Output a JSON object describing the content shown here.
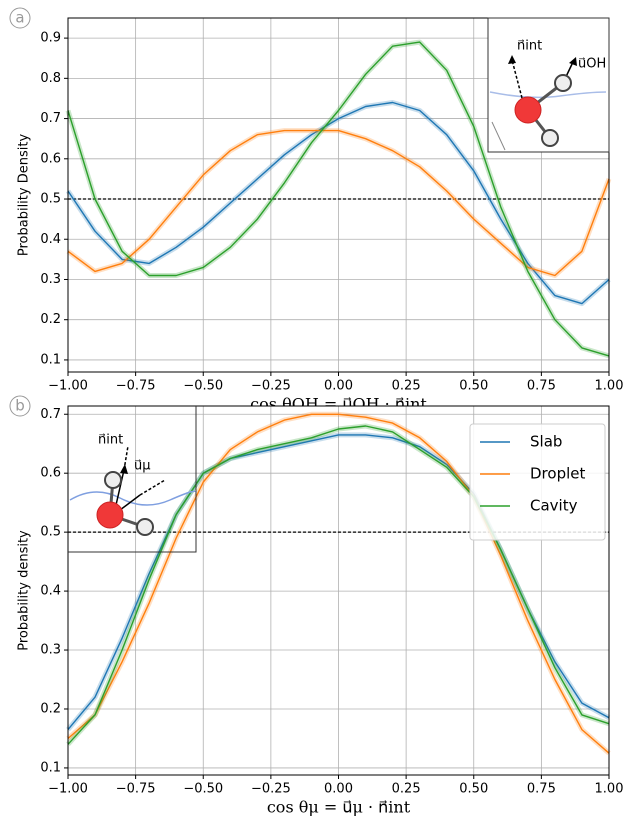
{
  "chart_data": [
    {
      "type": "line",
      "panel_label": "a",
      "x_label": "cos θOH = u⃗OH · n⃗int",
      "y_label": "Probability Density",
      "x": [
        -1.0,
        -0.9,
        -0.8,
        -0.7,
        -0.6,
        -0.5,
        -0.4,
        -0.3,
        -0.2,
        -0.1,
        0.0,
        0.1,
        0.2,
        0.3,
        0.4,
        0.5,
        0.6,
        0.7,
        0.8,
        0.9,
        1.0
      ],
      "series": [
        {
          "color": "#1f77b4",
          "values": [
            0.52,
            0.42,
            0.35,
            0.34,
            0.38,
            0.43,
            0.49,
            0.55,
            0.61,
            0.66,
            0.7,
            0.73,
            0.74,
            0.72,
            0.66,
            0.57,
            0.45,
            0.34,
            0.26,
            0.24,
            0.3
          ]
        },
        {
          "color": "#ff7f0e",
          "values": [
            0.37,
            0.32,
            0.34,
            0.4,
            0.48,
            0.56,
            0.62,
            0.66,
            0.67,
            0.67,
            0.67,
            0.65,
            0.62,
            0.58,
            0.52,
            0.45,
            0.39,
            0.33,
            0.31,
            0.37,
            0.55
          ]
        },
        {
          "color": "#2ca02c",
          "values": [
            0.72,
            0.5,
            0.37,
            0.31,
            0.31,
            0.33,
            0.38,
            0.45,
            0.54,
            0.64,
            0.72,
            0.81,
            0.88,
            0.89,
            0.82,
            0.68,
            0.48,
            0.32,
            0.2,
            0.13,
            0.11
          ]
        }
      ],
      "hline": 0.5,
      "xlim": [
        -1,
        1
      ],
      "ylim": [
        0.07,
        0.95
      ],
      "xticks": [
        {
          "value": -1,
          "label": "−1.00"
        },
        {
          "value": -0.75,
          "label": "−0.75"
        },
        {
          "value": -0.5,
          "label": "−0.50"
        },
        {
          "value": -0.25,
          "label": "−0.25"
        },
        {
          "value": 0,
          "label": "0.00"
        },
        {
          "value": 0.25,
          "label": "0.25"
        },
        {
          "value": 0.5,
          "label": "0.50"
        },
        {
          "value": 0.75,
          "label": "0.75"
        },
        {
          "value": 1,
          "label": "1.00"
        }
      ],
      "yticks": [
        0.1,
        0.2,
        0.3,
        0.4,
        0.5,
        0.6,
        0.7,
        0.8,
        0.9
      ],
      "grid": true,
      "annotations": [
        "n⃗int",
        "u⃗OH"
      ]
    },
    {
      "type": "line",
      "panel_label": "b",
      "x_label": "cos θμ = u⃗μ · n⃗int",
      "y_label": "Probability density",
      "x": [
        -1.0,
        -0.9,
        -0.8,
        -0.7,
        -0.6,
        -0.5,
        -0.4,
        -0.3,
        -0.2,
        -0.1,
        0.0,
        0.1,
        0.2,
        0.3,
        0.4,
        0.5,
        0.6,
        0.7,
        0.8,
        0.9,
        1.0
      ],
      "series": [
        {
          "name": "Slab",
          "color": "#1f77b4",
          "values": [
            0.165,
            0.22,
            0.32,
            0.43,
            0.53,
            0.6,
            0.625,
            0.635,
            0.645,
            0.655,
            0.665,
            0.665,
            0.66,
            0.645,
            0.615,
            0.565,
            0.47,
            0.37,
            0.28,
            0.21,
            0.185
          ]
        },
        {
          "name": "Droplet",
          "color": "#ff7f0e",
          "values": [
            0.15,
            0.19,
            0.28,
            0.38,
            0.49,
            0.585,
            0.64,
            0.67,
            0.69,
            0.7,
            0.7,
            0.695,
            0.685,
            0.66,
            0.62,
            0.56,
            0.46,
            0.35,
            0.25,
            0.165,
            0.125
          ]
        },
        {
          "name": "Cavity",
          "color": "#2ca02c",
          "values": [
            0.14,
            0.19,
            0.3,
            0.42,
            0.53,
            0.6,
            0.625,
            0.64,
            0.65,
            0.66,
            0.675,
            0.68,
            0.67,
            0.64,
            0.61,
            0.56,
            0.47,
            0.37,
            0.27,
            0.19,
            0.175
          ]
        }
      ],
      "hline": 0.5,
      "xlim": [
        -1,
        1
      ],
      "ylim": [
        0.088,
        0.714
      ],
      "xticks": [
        {
          "value": -1,
          "label": "−1.00"
        },
        {
          "value": -0.75,
          "label": "−0.75"
        },
        {
          "value": -0.5,
          "label": "−0.50"
        },
        {
          "value": -0.25,
          "label": "−0.25"
        },
        {
          "value": 0,
          "label": "0.00"
        },
        {
          "value": 0.25,
          "label": "0.25"
        },
        {
          "value": 0.5,
          "label": "0.50"
        },
        {
          "value": 0.75,
          "label": "0.75"
        },
        {
          "value": 1,
          "label": "1.00"
        }
      ],
      "yticks": [
        0.1,
        0.2,
        0.3,
        0.4,
        0.5,
        0.6,
        0.7
      ],
      "grid": true,
      "legend": "upper right",
      "annotations": [
        "n⃗int",
        "u⃗μ"
      ]
    }
  ]
}
